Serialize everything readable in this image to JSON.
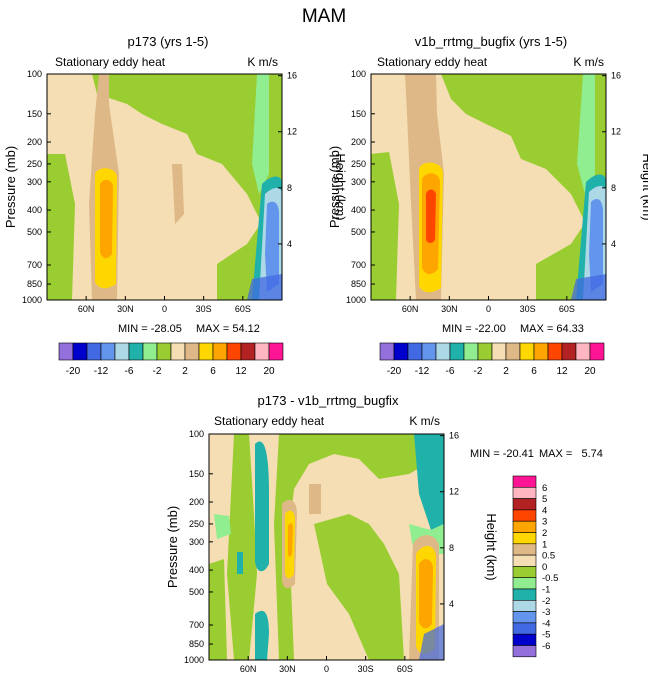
{
  "figure_title": "MAM",
  "chart_data": [
    {
      "type": "heatmap",
      "title": "p173 (yrs 1-5)",
      "subtitle_left": "Stationary eddy heat",
      "subtitle_right": "K m/s",
      "ylabel": "Pressure (mb)",
      "ylabel_right": "Height (km)",
      "x_ticks": [
        "60N",
        "30N",
        "0",
        "30S",
        "60S"
      ],
      "x_tick_values": [
        60,
        30,
        0,
        -30,
        -60
      ],
      "xlim": [
        90,
        -90
      ],
      "y_ticks": [
        "100",
        "150",
        "200",
        "250",
        "300",
        "400",
        "500",
        "700",
        "850",
        "1000"
      ],
      "y_tick_values": [
        100,
        150,
        200,
        250,
        300,
        400,
        500,
        700,
        850,
        1000
      ],
      "ylim": [
        100,
        1000
      ],
      "height_ticks": [
        "4",
        "8",
        "12",
        "16"
      ],
      "height_tick_values": [
        4,
        8,
        12,
        16
      ],
      "min_label": "MIN = -28.05",
      "max_label": "MAX =  54.12",
      "colorbar_labels": [
        "-20",
        "-12",
        "-6",
        "-2",
        "2",
        "6",
        "12",
        "20"
      ]
    },
    {
      "type": "heatmap",
      "title": "v1b_rrtmg_bugfix (yrs 1-5)",
      "subtitle_left": "Stationary eddy heat",
      "subtitle_right": "K m/s",
      "ylabel": "Pressure (mb)",
      "ylabel_right": "Height (km)",
      "x_ticks": [
        "60N",
        "30N",
        "0",
        "30S",
        "60S"
      ],
      "x_tick_values": [
        60,
        30,
        0,
        -30,
        -60
      ],
      "xlim": [
        90,
        -90
      ],
      "y_ticks": [
        "100",
        "150",
        "200",
        "250",
        "300",
        "400",
        "500",
        "700",
        "850",
        "1000"
      ],
      "y_tick_values": [
        100,
        150,
        200,
        250,
        300,
        400,
        500,
        700,
        850,
        1000
      ],
      "ylim": [
        100,
        1000
      ],
      "height_ticks": [
        "4",
        "8",
        "12",
        "16"
      ],
      "height_tick_values": [
        4,
        8,
        12,
        16
      ],
      "min_label": "MIN = -22.00",
      "max_label": "MAX =  64.33",
      "colorbar_labels": [
        "-20",
        "-12",
        "-6",
        "-2",
        "2",
        "6",
        "12",
        "20"
      ]
    },
    {
      "type": "heatmap",
      "title": "p173 - v1b_rrtmg_bugfix",
      "subtitle_left": "Stationary eddy heat",
      "subtitle_right": "K m/s",
      "ylabel": "Pressure (mb)",
      "ylabel_right": "Height (km)",
      "x_ticks": [
        "60N",
        "30N",
        "0",
        "30S",
        "60S"
      ],
      "x_tick_values": [
        60,
        30,
        0,
        -30,
        -60
      ],
      "xlim": [
        90,
        -90
      ],
      "y_ticks": [
        "100",
        "150",
        "200",
        "250",
        "300",
        "400",
        "500",
        "700",
        "850",
        "1000"
      ],
      "y_tick_values": [
        100,
        150,
        200,
        250,
        300,
        400,
        500,
        700,
        850,
        1000
      ],
      "ylim": [
        100,
        1000
      ],
      "height_ticks": [
        "4",
        "8",
        "12",
        "16"
      ],
      "height_tick_values": [
        4,
        8,
        12,
        16
      ],
      "min_label": "MIN = -20.41",
      "max_label": "MAX =   5.74",
      "colorbar_labels": [
        "6",
        "5",
        "4",
        "3",
        "2",
        "1",
        "0.5",
        "0",
        "-0.5",
        "-1",
        "-2",
        "-3",
        "-4",
        "-5",
        "-6"
      ]
    }
  ],
  "colors": {
    "abs_scale": [
      "#9370db",
      "#0000cd",
      "#4169e1",
      "#6495ed",
      "#add8e6",
      "#20b2aa",
      "#90ee90",
      "#9acd32",
      "#f5deb3",
      "#deb887",
      "#ffd700",
      "#ffa500",
      "#ff4500",
      "#b22222",
      "#ffb6c1",
      "#ff1493"
    ],
    "diff_scale": [
      "#ff1493",
      "#ffb6c1",
      "#b22222",
      "#ff4500",
      "#ffa500",
      "#ffd700",
      "#deb887",
      "#f5deb3",
      "#9acd32",
      "#90ee90",
      "#20b2aa",
      "#add8e6",
      "#6495ed",
      "#4169e1",
      "#0000cd",
      "#9370db"
    ]
  }
}
